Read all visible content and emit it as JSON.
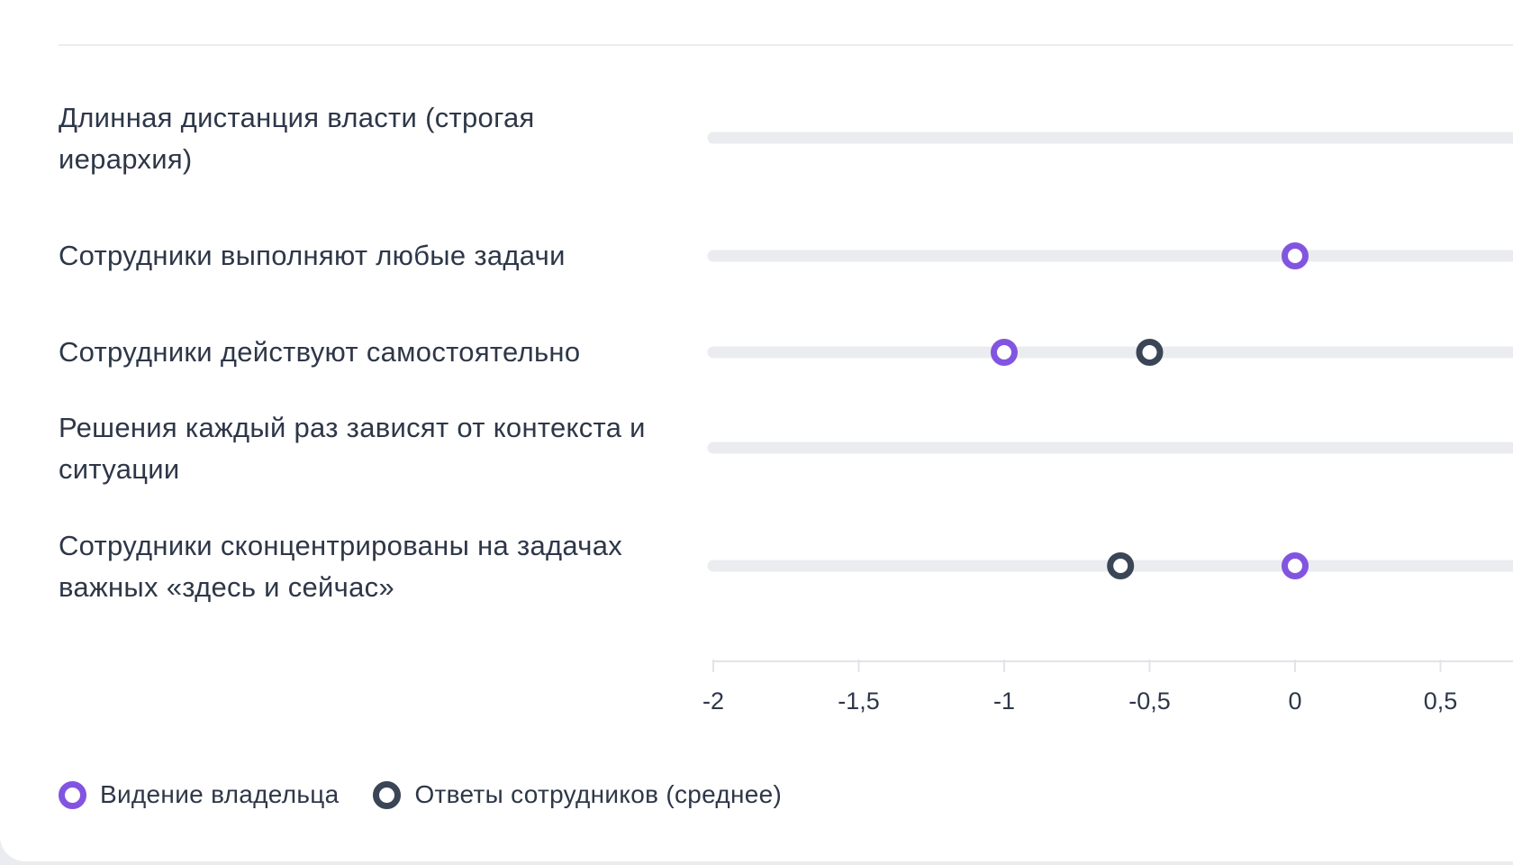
{
  "colors": {
    "owner": "#8255e0",
    "employees": "#3a4556",
    "track": "#ebecf0",
    "axis": "#e3e4e8",
    "text": "#2e3748"
  },
  "legend": {
    "owner_label": "Видение владельца",
    "employees_label": "Ответы сотрудников (среднее)"
  },
  "chart_data": {
    "type": "scatter",
    "categories": [
      "Длинная дистанция власти (строгая иерархия)",
      "Сотрудники выполняют любые задачи",
      "Сотрудники действуют самостоятельно",
      "Решения каждый раз зависят от контекста и ситуации",
      "Сотрудники сконцентрированы на задачах важных «здесь и сейчас»"
    ],
    "series": [
      {
        "name": "Видение владельца",
        "color": "#8255e0",
        "values": [
          null,
          0,
          -1,
          null,
          0
        ]
      },
      {
        "name": "Ответы сотрудников (среднее)",
        "color": "#3a4556",
        "values": [
          null,
          null,
          -0.5,
          null,
          -0.6
        ]
      }
    ],
    "x_ticks": [
      -2,
      -1.5,
      -1,
      -0.5,
      0,
      0.5
    ],
    "x_tick_labels": [
      "-2",
      "-1,5",
      "-1",
      "-0,5",
      "0",
      "0,5"
    ],
    "grid": false,
    "legend_position": "bottom-left"
  }
}
